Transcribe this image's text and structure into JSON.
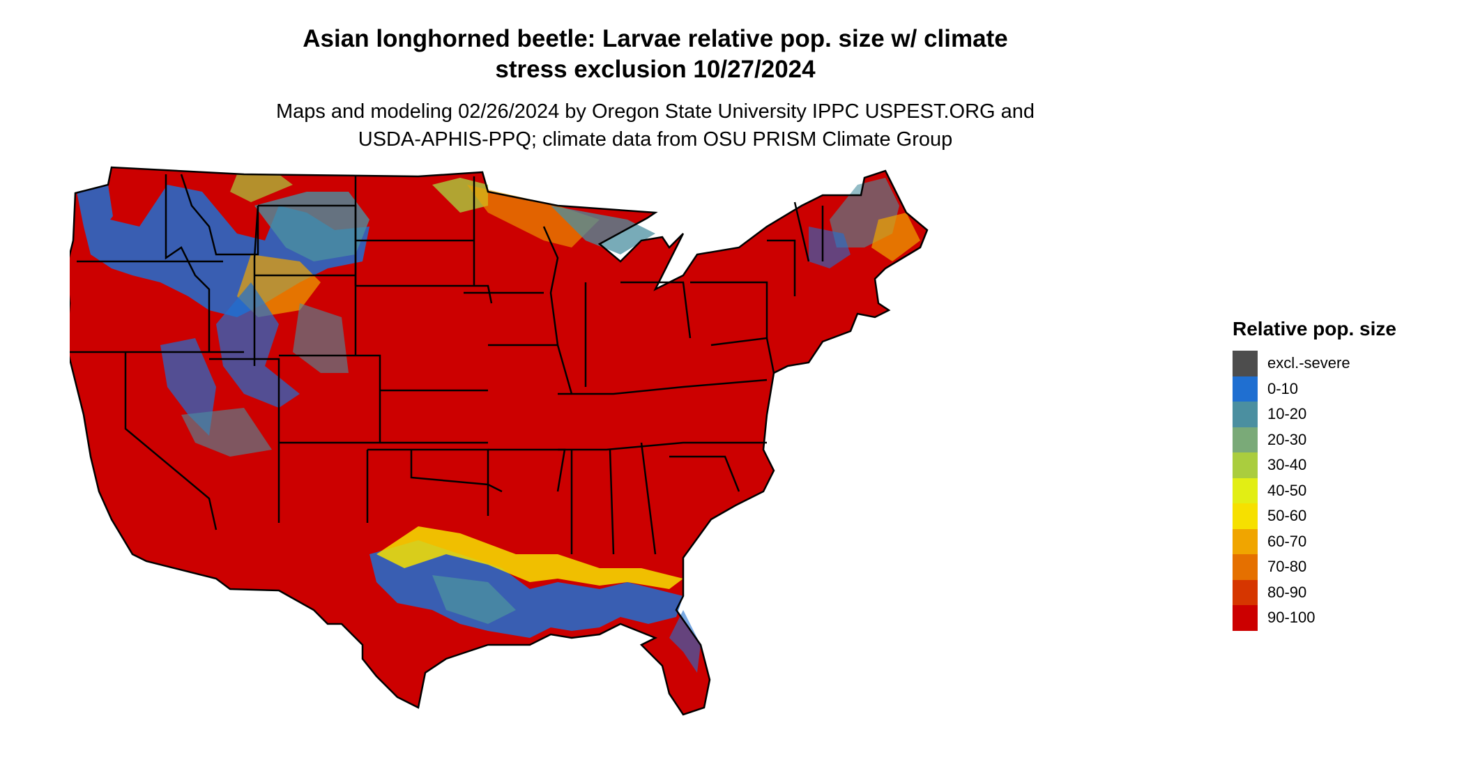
{
  "map": {
    "title_line1": "Asian longhorned beetle: Larvae relative pop. size w/ climate",
    "title_line2": "stress exclusion 10/27/2024",
    "subtitle_line1": "Maps and modeling 02/26/2024 by Oregon State University IPPC USPEST.ORG and",
    "subtitle_line2": "USDA-APHIS-PPQ; climate data from OSU PRISM Climate Group",
    "region": "Contiguous United States",
    "boundaries": "state borders",
    "predominant_class": "90-100"
  },
  "legend": {
    "title": "Relative pop. size",
    "items": [
      {
        "label": "excl.-severe",
        "color": "#4d4d4d"
      },
      {
        "label": "0-10",
        "color": "#1f6fd1"
      },
      {
        "label": "10-20",
        "color": "#4b8fa0"
      },
      {
        "label": "20-30",
        "color": "#7aaa78"
      },
      {
        "label": "30-40",
        "color": "#aacd3e"
      },
      {
        "label": "40-50",
        "color": "#e2ee14"
      },
      {
        "label": "50-60",
        "color": "#f6e000"
      },
      {
        "label": "60-70",
        "color": "#f0a500"
      },
      {
        "label": "70-80",
        "color": "#e57000"
      },
      {
        "label": "80-90",
        "color": "#d63600"
      },
      {
        "label": "90-100",
        "color": "#cc0000"
      }
    ]
  }
}
